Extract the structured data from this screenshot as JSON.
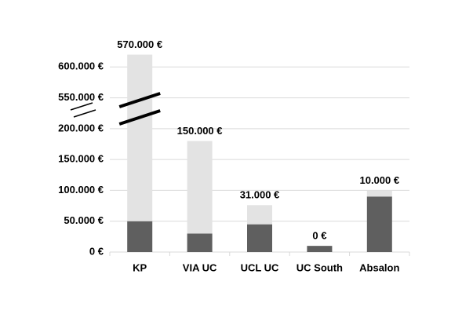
{
  "chart_data": {
    "type": "stacked-bar",
    "categories": [
      "KP",
      "VIA UC",
      "UCL UC",
      "UC South",
      "Absalon"
    ],
    "series": [
      {
        "color": "#5f5f5f",
        "values": [
          50000,
          30000,
          45000,
          10000,
          90000
        ]
      },
      {
        "color": "#e3e3e3",
        "values": [
          570000,
          150000,
          31000,
          0,
          10000
        ],
        "value_labels": [
          "570.000 €",
          "150.000 €",
          "31.000 €",
          "0 €",
          "10.000 €"
        ]
      }
    ],
    "ylim": [
      0,
      650000
    ],
    "axis_break": [
      200000,
      550000
    ],
    "yticks": [
      {
        "value": 0,
        "label": "0 €"
      },
      {
        "value": 50000,
        "label": "50.000 €"
      },
      {
        "value": 100000,
        "label": "100.000 €"
      },
      {
        "value": 150000,
        "label": "150.000 €"
      },
      {
        "value": 200000,
        "label": "200.000 €"
      },
      {
        "value": 550000,
        "label": "550.000 €"
      },
      {
        "value": 600000,
        "label": "600.000 €"
      }
    ],
    "grid": true
  }
}
